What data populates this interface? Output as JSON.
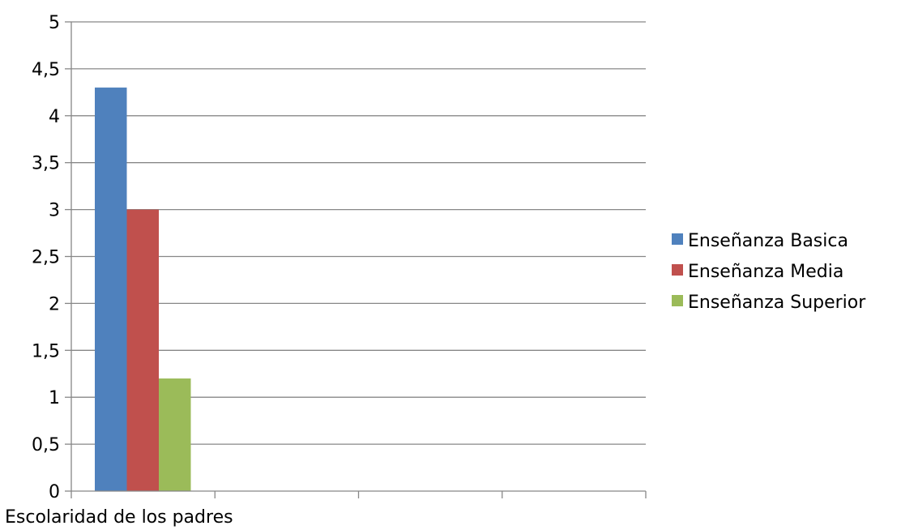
{
  "chart_data": {
    "type": "bar",
    "categories": [
      "Escolaridad de los padres",
      "",
      "",
      ""
    ],
    "series": [
      {
        "name": "Enseñanza Basica",
        "values": [
          4.3,
          null,
          null,
          null
        ],
        "color": "#4f81bd"
      },
      {
        "name": "Enseñanza Media",
        "values": [
          3.0,
          null,
          null,
          null
        ],
        "color": "#c0504d"
      },
      {
        "name": "Enseñanza Superior",
        "values": [
          1.2,
          null,
          null,
          null
        ],
        "color": "#9bbb59"
      }
    ],
    "yticks": [
      "0",
      "0,5",
      "1",
      "1,5",
      "2",
      "2,5",
      "3",
      "3,5",
      "4",
      "4,5",
      "5"
    ],
    "ylim": [
      0,
      5
    ],
    "ystep": 0.5,
    "title": "",
    "xlabel": "",
    "ylabel": "",
    "grid": true,
    "legend_position": "right"
  }
}
